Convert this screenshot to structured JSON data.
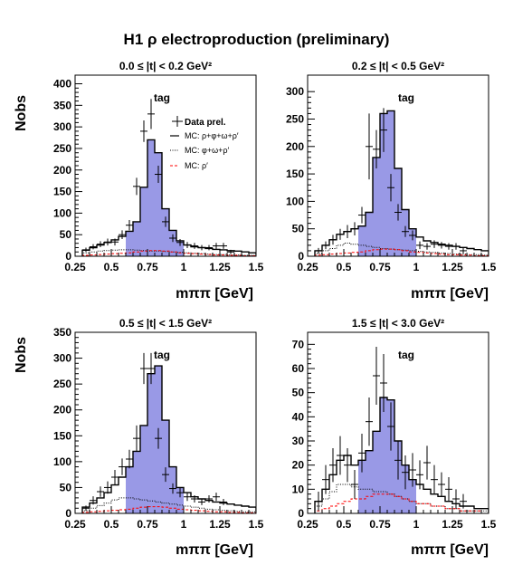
{
  "title": "H1 ρ electroproduction (preliminary)",
  "colors": {
    "fill": "#9999e6",
    "mc_total": "#000000",
    "mc_bkg": "#000000",
    "mc_rho_prime": "#ff0000",
    "data": "#000000"
  },
  "legend_entries": [
    {
      "key": "data",
      "label": "Data prel."
    },
    {
      "key": "mc_total",
      "label": "MC: ρ+φ+ω+ρ′"
    },
    {
      "key": "mc_bkg",
      "label": "MC: φ+ω+ρ′"
    },
    {
      "key": "mc_rho_prime",
      "label": "MC: ρ′"
    }
  ],
  "chart_data": [
    {
      "type": "bar",
      "title": "0.0 ≤ |t| < 0.2 GeV²",
      "tag": "tag",
      "xlabel": "mππ [GeV]",
      "ylabel": "Nobs",
      "xlim": [
        0.25,
        1.5
      ],
      "ylim": [
        0,
        420
      ],
      "xticks": [
        0.25,
        0.5,
        0.75,
        1,
        1.25,
        1.5
      ],
      "xtick_labels": [
        "0.25",
        "0.5",
        "0.75",
        "1",
        "1.25",
        "1.5"
      ],
      "yticks": [
        0,
        50,
        100,
        150,
        200,
        250,
        300,
        350,
        400
      ],
      "ytick_labels": [
        "0",
        "50",
        "100",
        "150",
        "200",
        "250",
        "300",
        "350",
        "400"
      ],
      "legend": true,
      "shade_range": [
        0.6,
        1.0
      ],
      "bin_edges": [
        0.3,
        0.35,
        0.4,
        0.45,
        0.5,
        0.55,
        0.6,
        0.65,
        0.7,
        0.75,
        0.8,
        0.85,
        0.9,
        0.95,
        1.0,
        1.05,
        1.1,
        1.15,
        1.2,
        1.25,
        1.3,
        1.35,
        1.4,
        1.45,
        1.5
      ],
      "mc_total": [
        14,
        20,
        26,
        32,
        38,
        46,
        58,
        80,
        160,
        270,
        240,
        110,
        60,
        36,
        26,
        22,
        20,
        18,
        16,
        15,
        13,
        12,
        10,
        8
      ],
      "mc_bkg": [
        8,
        10,
        12,
        13,
        14,
        15,
        15,
        14,
        13,
        12,
        12,
        11,
        10,
        9,
        8,
        7,
        6,
        5,
        4,
        4,
        3,
        3,
        2,
        2
      ],
      "mc_rho_prime": [
        2,
        3,
        4,
        5,
        6,
        7,
        8,
        10,
        12,
        13,
        13,
        12,
        10,
        8,
        7,
        6,
        5,
        4,
        3,
        3,
        2,
        2,
        1,
        1
      ],
      "data_points": {
        "x": [
          0.325,
          0.375,
          0.425,
          0.475,
          0.525,
          0.575,
          0.625,
          0.675,
          0.725,
          0.775,
          0.825,
          0.875,
          0.925,
          0.975,
          1.025,
          1.075,
          1.125,
          1.175,
          1.225,
          1.275,
          1.325
        ],
        "y": [
          15,
          22,
          28,
          33,
          33,
          50,
          72,
          162,
          290,
          330,
          190,
          80,
          42,
          32,
          26,
          24,
          20,
          20,
          24,
          24,
          10
        ],
        "err": [
          5,
          6,
          7,
          8,
          8,
          10,
          12,
          20,
          25,
          35,
          20,
          12,
          9,
          8,
          7,
          7,
          6,
          6,
          7,
          7,
          5
        ]
      }
    },
    {
      "type": "bar",
      "title": "0.2 ≤ |t| < 0.5 GeV²",
      "tag": "tag",
      "xlabel": "mππ [GeV]",
      "ylabel": "",
      "xlim": [
        0.25,
        1.5
      ],
      "ylim": [
        0,
        330
      ],
      "xticks": [
        0.25,
        0.5,
        0.75,
        1,
        1.25,
        1.5
      ],
      "xtick_labels": [
        "0.25",
        "0.5",
        "0.75",
        "1",
        "1.25",
        "1.5"
      ],
      "yticks": [
        0,
        50,
        100,
        150,
        200,
        250,
        300
      ],
      "ytick_labels": [
        "0",
        "50",
        "100",
        "150",
        "200",
        "250",
        "300"
      ],
      "legend": false,
      "shade_range": [
        0.6,
        1.0
      ],
      "bin_edges": [
        0.3,
        0.35,
        0.4,
        0.45,
        0.5,
        0.55,
        0.6,
        0.65,
        0.7,
        0.75,
        0.8,
        0.85,
        0.9,
        0.95,
        1.0,
        1.05,
        1.1,
        1.15,
        1.2,
        1.25,
        1.3,
        1.35,
        1.4,
        1.45,
        1.5
      ],
      "mc_total": [
        10,
        20,
        30,
        40,
        45,
        50,
        55,
        80,
        180,
        260,
        265,
        160,
        85,
        50,
        35,
        28,
        25,
        22,
        20,
        18,
        16,
        14,
        12,
        10
      ],
      "mc_bkg": [
        5,
        10,
        14,
        20,
        24,
        22,
        20,
        18,
        16,
        14,
        13,
        12,
        11,
        10,
        9,
        8,
        7,
        6,
        5,
        4,
        4,
        3,
        3,
        2
      ],
      "mc_rho_prime": [
        2,
        3,
        4,
        5,
        6,
        7,
        8,
        10,
        12,
        13,
        13,
        12,
        10,
        8,
        7,
        6,
        5,
        4,
        3,
        3,
        2,
        2,
        1,
        1
      ],
      "data_points": {
        "x": [
          0.325,
          0.375,
          0.425,
          0.475,
          0.525,
          0.575,
          0.625,
          0.675,
          0.725,
          0.775,
          0.825,
          0.875,
          0.925,
          0.975,
          1.025,
          1.075,
          1.125,
          1.175,
          1.225,
          1.275,
          1.325
        ],
        "y": [
          10,
          20,
          30,
          40,
          45,
          50,
          75,
          200,
          195,
          230,
          125,
          80,
          45,
          38,
          20,
          18,
          22,
          20,
          18,
          18,
          10
        ],
        "err": [
          5,
          7,
          9,
          10,
          12,
          12,
          15,
          60,
          35,
          40,
          25,
          15,
          10,
          9,
          7,
          6,
          7,
          6,
          6,
          6,
          5
        ]
      }
    },
    {
      "type": "bar",
      "title": "0.5 ≤ |t| < 1.5 GeV²",
      "tag": "tag",
      "xlabel": "mππ [GeV]",
      "ylabel": "Nobs",
      "xlim": [
        0.25,
        1.5
      ],
      "ylim": [
        0,
        350
      ],
      "xticks": [
        0.25,
        0.5,
        0.75,
        1,
        1.25,
        1.5
      ],
      "xtick_labels": [
        "0.25",
        "0.5",
        "0.75",
        "1",
        "1.25",
        "1.5"
      ],
      "yticks": [
        0,
        50,
        100,
        150,
        200,
        250,
        300,
        350
      ],
      "ytick_labels": [
        "0",
        "50",
        "100",
        "150",
        "200",
        "250",
        "300",
        "350"
      ],
      "legend": false,
      "shade_range": [
        0.6,
        1.0
      ],
      "bin_edges": [
        0.3,
        0.35,
        0.4,
        0.45,
        0.5,
        0.55,
        0.6,
        0.65,
        0.7,
        0.75,
        0.8,
        0.85,
        0.9,
        0.95,
        1.0,
        1.05,
        1.1,
        1.15,
        1.2,
        1.25,
        1.3,
        1.35,
        1.4,
        1.45,
        1.5
      ],
      "mc_total": [
        12,
        20,
        30,
        40,
        55,
        70,
        90,
        120,
        170,
        270,
        285,
        180,
        90,
        50,
        40,
        32,
        28,
        25,
        22,
        20,
        18,
        16,
        14,
        12
      ],
      "mc_bkg": [
        5,
        10,
        15,
        20,
        26,
        30,
        30,
        28,
        26,
        24,
        22,
        20,
        18,
        16,
        14,
        12,
        10,
        8,
        7,
        6,
        5,
        4,
        3,
        3
      ],
      "mc_rho_prime": [
        2,
        3,
        4,
        5,
        6,
        7,
        8,
        10,
        12,
        13,
        13,
        12,
        10,
        8,
        7,
        6,
        5,
        4,
        3,
        3,
        2,
        2,
        1,
        1
      ],
      "data_points": {
        "x": [
          0.325,
          0.375,
          0.425,
          0.475,
          0.525,
          0.575,
          0.625,
          0.675,
          0.725,
          0.775,
          0.825,
          0.875,
          0.925,
          0.975,
          1.025,
          1.075,
          1.125,
          1.175,
          1.225,
          1.275
        ],
        "y": [
          10,
          25,
          42,
          50,
          70,
          90,
          105,
          145,
          280,
          280,
          145,
          75,
          48,
          40,
          32,
          28,
          22,
          28,
          32,
          22
        ],
        "err": [
          5,
          8,
          10,
          12,
          14,
          16,
          18,
          25,
          30,
          30,
          20,
          14,
          10,
          9,
          8,
          7,
          6,
          7,
          8,
          6
        ]
      }
    },
    {
      "type": "bar",
      "title": "1.5 ≤ |t| < 3.0 GeV²",
      "tag": "tag",
      "xlabel": "mππ [GeV]",
      "ylabel": "",
      "xlim": [
        0.25,
        1.5
      ],
      "ylim": [
        0,
        75
      ],
      "xticks": [
        0.25,
        0.5,
        0.75,
        1,
        1.25,
        1.5
      ],
      "xtick_labels": [
        "0.25",
        "0.5",
        "0.75",
        "1",
        "1.25",
        "1.5"
      ],
      "yticks": [
        0,
        10,
        20,
        30,
        40,
        50,
        60,
        70
      ],
      "ytick_labels": [
        "0",
        "10",
        "20",
        "30",
        "40",
        "50",
        "60",
        "70"
      ],
      "legend": false,
      "shade_range": [
        0.6,
        1.0
      ],
      "bin_edges": [
        0.3,
        0.35,
        0.4,
        0.45,
        0.5,
        0.55,
        0.6,
        0.65,
        0.7,
        0.75,
        0.8,
        0.85,
        0.9,
        0.95,
        1.0,
        1.05,
        1.1,
        1.15,
        1.2,
        1.25,
        1.3,
        1.35,
        1.4,
        1.45,
        1.5
      ],
      "mc_total": [
        5,
        10,
        16,
        22,
        24,
        20,
        22,
        26,
        34,
        48,
        47,
        30,
        20,
        14,
        12,
        10,
        8,
        7,
        5,
        4,
        3,
        3,
        2,
        2
      ],
      "mc_bkg": [
        3,
        6,
        9,
        12,
        12,
        11,
        10,
        10,
        9,
        9,
        8,
        7,
        6,
        5,
        4,
        4,
        3,
        3,
        2,
        2,
        1,
        1,
        1,
        1
      ],
      "mc_rho_prime": [
        1,
        2,
        3,
        4,
        5,
        6,
        6,
        7,
        8,
        8,
        8,
        7,
        6,
        5,
        4,
        4,
        3,
        3,
        2,
        2,
        1,
        1,
        1,
        0
      ],
      "data_points": {
        "x": [
          0.325,
          0.375,
          0.425,
          0.475,
          0.525,
          0.575,
          0.625,
          0.675,
          0.725,
          0.775,
          0.825,
          0.875,
          0.925,
          0.975,
          1.025,
          1.075,
          1.125,
          1.175,
          1.225,
          1.275,
          1.325
        ],
        "y": [
          5,
          14,
          20,
          24,
          20,
          12,
          25,
          38,
          57,
          54,
          36,
          22,
          17,
          18,
          16,
          21,
          14,
          12,
          10,
          6,
          5
        ],
        "err": [
          4,
          6,
          7,
          8,
          7,
          6,
          8,
          10,
          12,
          12,
          10,
          8,
          7,
          7,
          6,
          7,
          6,
          5,
          5,
          4,
          3
        ]
      }
    }
  ]
}
